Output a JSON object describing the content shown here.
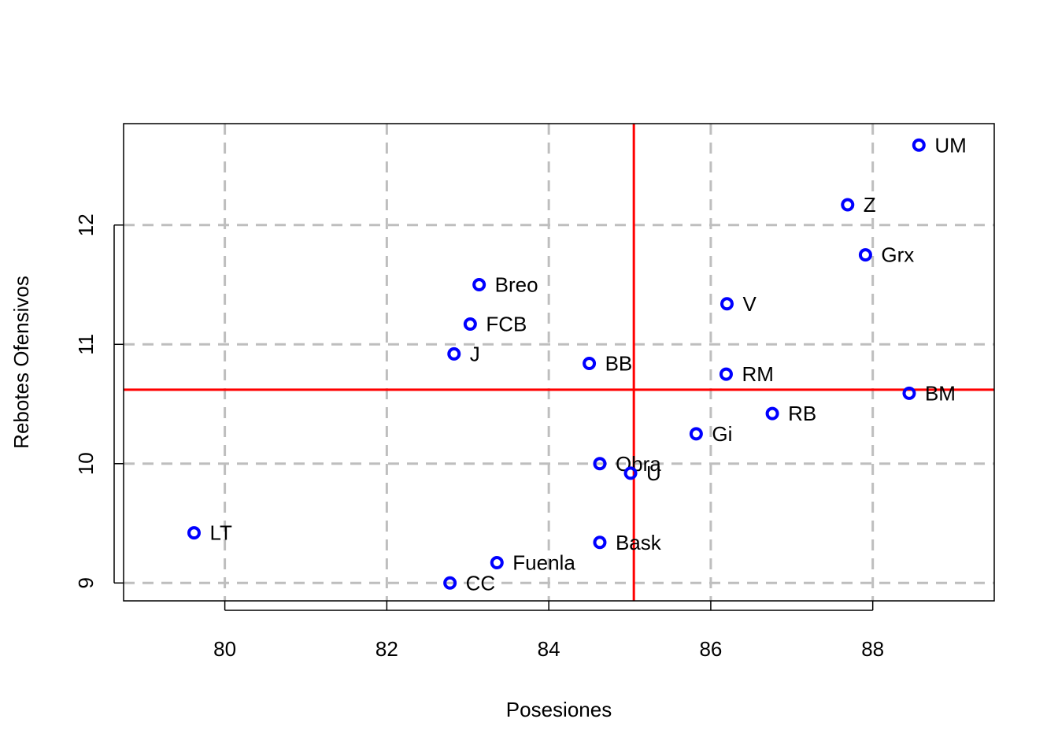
{
  "chart_data": {
    "type": "scatter",
    "title": "",
    "xlabel": "Posesiones",
    "ylabel": "Rebotes Ofensivos",
    "xlim": [
      78.75,
      89.5
    ],
    "ylim": [
      8.85,
      12.85
    ],
    "xticks": [
      80,
      82,
      84,
      86,
      88
    ],
    "yticks": [
      9,
      10,
      11,
      12
    ],
    "grid": true,
    "point_color": "#0000ff",
    "reference_line_color": "#ff0000",
    "grid_color": "#bebebe",
    "reference_lines": {
      "x": 85.05,
      "y": 10.62
    },
    "points": [
      {
        "label": "UM",
        "x": 88.57,
        "y": 12.67
      },
      {
        "label": "Z",
        "x": 87.69,
        "y": 12.17
      },
      {
        "label": "Grx",
        "x": 87.91,
        "y": 11.75
      },
      {
        "label": "Breo",
        "x": 83.14,
        "y": 11.5
      },
      {
        "label": "V",
        "x": 86.2,
        "y": 11.34
      },
      {
        "label": "FCB",
        "x": 83.03,
        "y": 11.17
      },
      {
        "label": "J",
        "x": 82.83,
        "y": 10.92
      },
      {
        "label": "BB",
        "x": 84.5,
        "y": 10.84
      },
      {
        "label": "RM",
        "x": 86.19,
        "y": 10.75
      },
      {
        "label": "BM",
        "x": 88.45,
        "y": 10.59
      },
      {
        "label": "RB",
        "x": 86.76,
        "y": 10.42
      },
      {
        "label": "Gi",
        "x": 85.82,
        "y": 10.25
      },
      {
        "label": "Obra",
        "x": 84.63,
        "y": 10.0
      },
      {
        "label": "U",
        "x": 85.01,
        "y": 9.92
      },
      {
        "label": "LT",
        "x": 79.62,
        "y": 9.42
      },
      {
        "label": "Bask",
        "x": 84.63,
        "y": 9.34
      },
      {
        "label": "Fuenla",
        "x": 83.36,
        "y": 9.17
      },
      {
        "label": "CC",
        "x": 82.78,
        "y": 9.0
      }
    ]
  }
}
